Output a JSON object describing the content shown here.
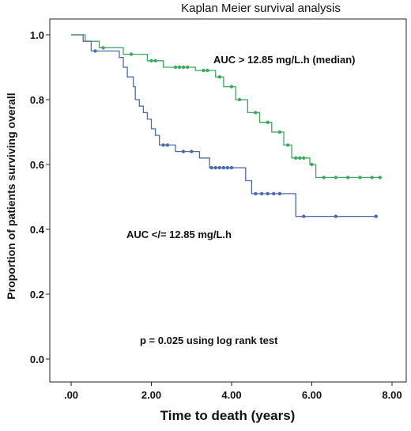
{
  "chart_data": {
    "type": "line",
    "title": "Kaplan Meier survival analysis",
    "xlabel": "Time to death (years)",
    "ylabel": "Proportion of patients surviving overall",
    "xlim": [
      0,
      8
    ],
    "ylim": [
      0,
      1.0
    ],
    "x_ticks": [
      ".00",
      "2.00",
      "4.00",
      "6.00",
      "8.00"
    ],
    "x_tick_values": [
      0,
      2,
      4,
      6,
      8
    ],
    "y_ticks": [
      "0.0",
      "0.2",
      "0.4",
      "0.6",
      "0.8",
      "1.0"
    ],
    "y_tick_values": [
      0,
      0.2,
      0.4,
      0.6,
      0.8,
      1.0
    ],
    "grid": false,
    "annotations": [
      {
        "text": "AUC >  12.85 mg/L.h (median)",
        "series": "high"
      },
      {
        "text": "AUC </= 12.85 mg/L.h",
        "series": "low"
      },
      {
        "text": "p = 0.025 using log rank test"
      }
    ],
    "series": [
      {
        "id": "high",
        "color": "#3aaa5c",
        "steps": [
          [
            0,
            1.0
          ],
          [
            0.35,
            0.98
          ],
          [
            0.7,
            0.96
          ],
          [
            1.3,
            0.94
          ],
          [
            1.9,
            0.92
          ],
          [
            2.3,
            0.9
          ],
          [
            3.1,
            0.89
          ],
          [
            3.6,
            0.87
          ],
          [
            3.8,
            0.84
          ],
          [
            4.1,
            0.8
          ],
          [
            4.4,
            0.76
          ],
          [
            4.7,
            0.73
          ],
          [
            5.0,
            0.7
          ],
          [
            5.3,
            0.66
          ],
          [
            5.5,
            0.62
          ],
          [
            5.95,
            0.6
          ],
          [
            6.1,
            0.56
          ],
          [
            7.75,
            0.56
          ]
        ],
        "censored": [
          [
            0.8,
            0.96
          ],
          [
            1.5,
            0.94
          ],
          [
            2.0,
            0.92
          ],
          [
            2.1,
            0.92
          ],
          [
            2.6,
            0.9
          ],
          [
            2.7,
            0.9
          ],
          [
            2.8,
            0.9
          ],
          [
            2.9,
            0.9
          ],
          [
            3.3,
            0.89
          ],
          [
            3.4,
            0.89
          ],
          [
            3.7,
            0.87
          ],
          [
            4.0,
            0.84
          ],
          [
            4.2,
            0.8
          ],
          [
            4.6,
            0.76
          ],
          [
            4.9,
            0.73
          ],
          [
            5.2,
            0.7
          ],
          [
            5.4,
            0.66
          ],
          [
            5.6,
            0.62
          ],
          [
            5.7,
            0.62
          ],
          [
            5.8,
            0.62
          ],
          [
            6.0,
            0.6
          ],
          [
            6.3,
            0.56
          ],
          [
            6.6,
            0.56
          ],
          [
            6.9,
            0.56
          ],
          [
            7.2,
            0.56
          ],
          [
            7.5,
            0.56
          ],
          [
            7.7,
            0.56
          ]
        ]
      },
      {
        "id": "low",
        "color": "#4a6bb0",
        "steps": [
          [
            0,
            1.0
          ],
          [
            0.3,
            0.98
          ],
          [
            0.5,
            0.95
          ],
          [
            1.2,
            0.93
          ],
          [
            1.3,
            0.9
          ],
          [
            1.4,
            0.87
          ],
          [
            1.55,
            0.84
          ],
          [
            1.6,
            0.8
          ],
          [
            1.7,
            0.78
          ],
          [
            1.8,
            0.76
          ],
          [
            1.9,
            0.74
          ],
          [
            2.0,
            0.71
          ],
          [
            2.1,
            0.69
          ],
          [
            2.2,
            0.66
          ],
          [
            2.6,
            0.64
          ],
          [
            3.2,
            0.62
          ],
          [
            3.45,
            0.59
          ],
          [
            4.35,
            0.55
          ],
          [
            4.5,
            0.51
          ],
          [
            5.6,
            0.44
          ],
          [
            7.6,
            0.44
          ]
        ],
        "censored": [
          [
            0.6,
            0.95
          ],
          [
            2.3,
            0.66
          ],
          [
            2.4,
            0.66
          ],
          [
            2.8,
            0.64
          ],
          [
            3.0,
            0.64
          ],
          [
            3.5,
            0.59
          ],
          [
            3.6,
            0.59
          ],
          [
            3.7,
            0.59
          ],
          [
            3.8,
            0.59
          ],
          [
            3.9,
            0.59
          ],
          [
            4.0,
            0.59
          ],
          [
            4.6,
            0.51
          ],
          [
            4.75,
            0.51
          ],
          [
            4.9,
            0.51
          ],
          [
            5.05,
            0.51
          ],
          [
            5.2,
            0.51
          ],
          [
            5.8,
            0.44
          ],
          [
            6.6,
            0.44
          ],
          [
            7.6,
            0.44
          ]
        ]
      }
    ]
  }
}
